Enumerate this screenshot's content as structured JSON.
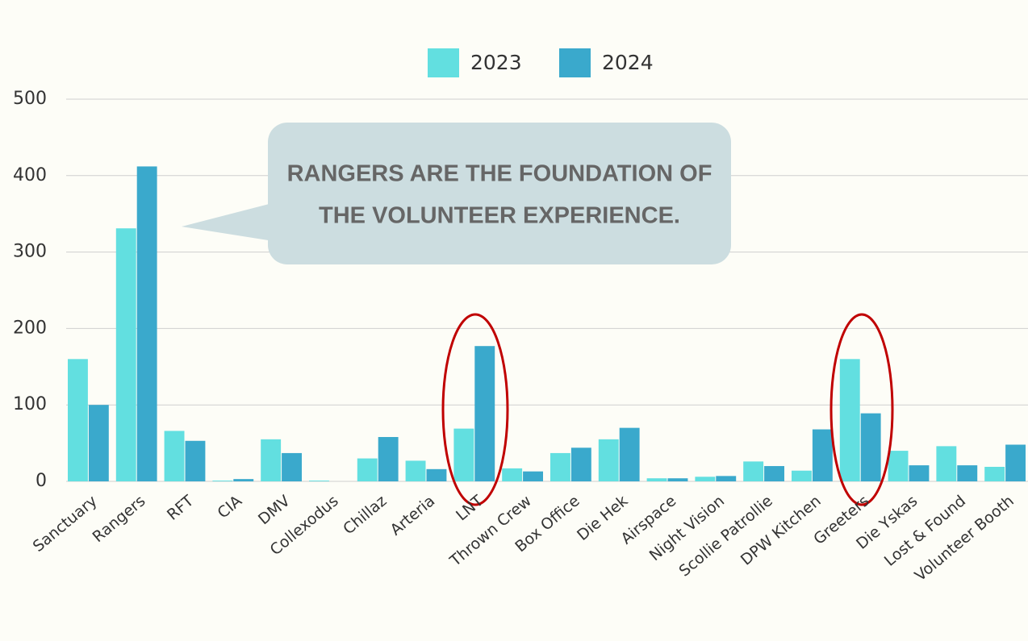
{
  "chart_data": {
    "type": "bar",
    "annotation": [
      "RANGERS ARE THE FOUNDATION OF",
      "THE VOLUNTEER EXPERIENCE."
    ],
    "categories": [
      "Sanctuary",
      "Rangers",
      "RFT",
      "CIA",
      "DMV",
      "Collexodus",
      "Chillaz",
      "Arteria",
      "LNT",
      "Thrown Crew",
      "Box Office",
      "Die Hek",
      "Airspace",
      "Night Vision",
      "Scollie Patrollie",
      "DPW Kitchen",
      "Greeters",
      "Die Yskas",
      "Lost & Found",
      "Volunteer Booth"
    ],
    "series": [
      {
        "name": "2023",
        "color": "#62dfe0",
        "values": [
          160,
          331,
          66,
          1,
          55,
          1,
          30,
          27,
          69,
          17,
          37,
          55,
          4,
          6,
          26,
          14,
          160,
          40,
          46,
          19
        ]
      },
      {
        "name": "2024",
        "color": "#3aa9cc",
        "values": [
          100,
          412,
          53,
          3,
          37,
          0,
          58,
          16,
          177,
          13,
          44,
          70,
          4,
          7,
          20,
          68,
          89,
          21,
          21,
          48
        ]
      }
    ],
    "ylim": [
      0,
      500
    ],
    "yticks": [
      0,
      100,
      200,
      300,
      400,
      500
    ],
    "grid": true
  }
}
